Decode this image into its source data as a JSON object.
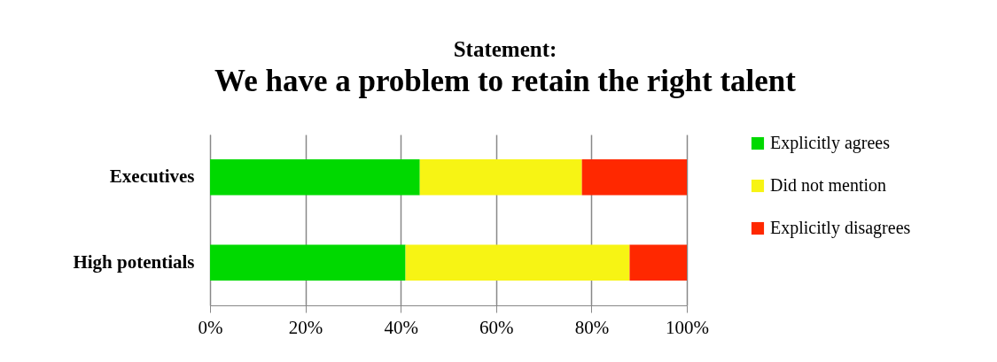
{
  "chart_data": {
    "type": "bar",
    "orientation": "horizontal",
    "stacked": true,
    "title": "Statement:",
    "subtitle": "We have a problem to retain the right talent",
    "categories": [
      "Executives",
      "High potentials"
    ],
    "series": [
      {
        "name": "Explicitly agrees",
        "color": "#00d900",
        "values": [
          44,
          41
        ]
      },
      {
        "name": "Did not mention",
        "color": "#f7f414",
        "values": [
          34,
          47
        ]
      },
      {
        "name": "Explicitly disagrees",
        "color": "#ff2800",
        "values": [
          22,
          12
        ]
      }
    ],
    "xlim": [
      0,
      100
    ],
    "xticks": [
      {
        "value": 0,
        "label": "0%"
      },
      {
        "value": 20,
        "label": "20%"
      },
      {
        "value": 40,
        "label": "40%"
      },
      {
        "value": 60,
        "label": "60%"
      },
      {
        "value": 80,
        "label": "80%"
      },
      {
        "value": 100,
        "label": "100%"
      }
    ],
    "grid": "x",
    "legend": "right"
  }
}
